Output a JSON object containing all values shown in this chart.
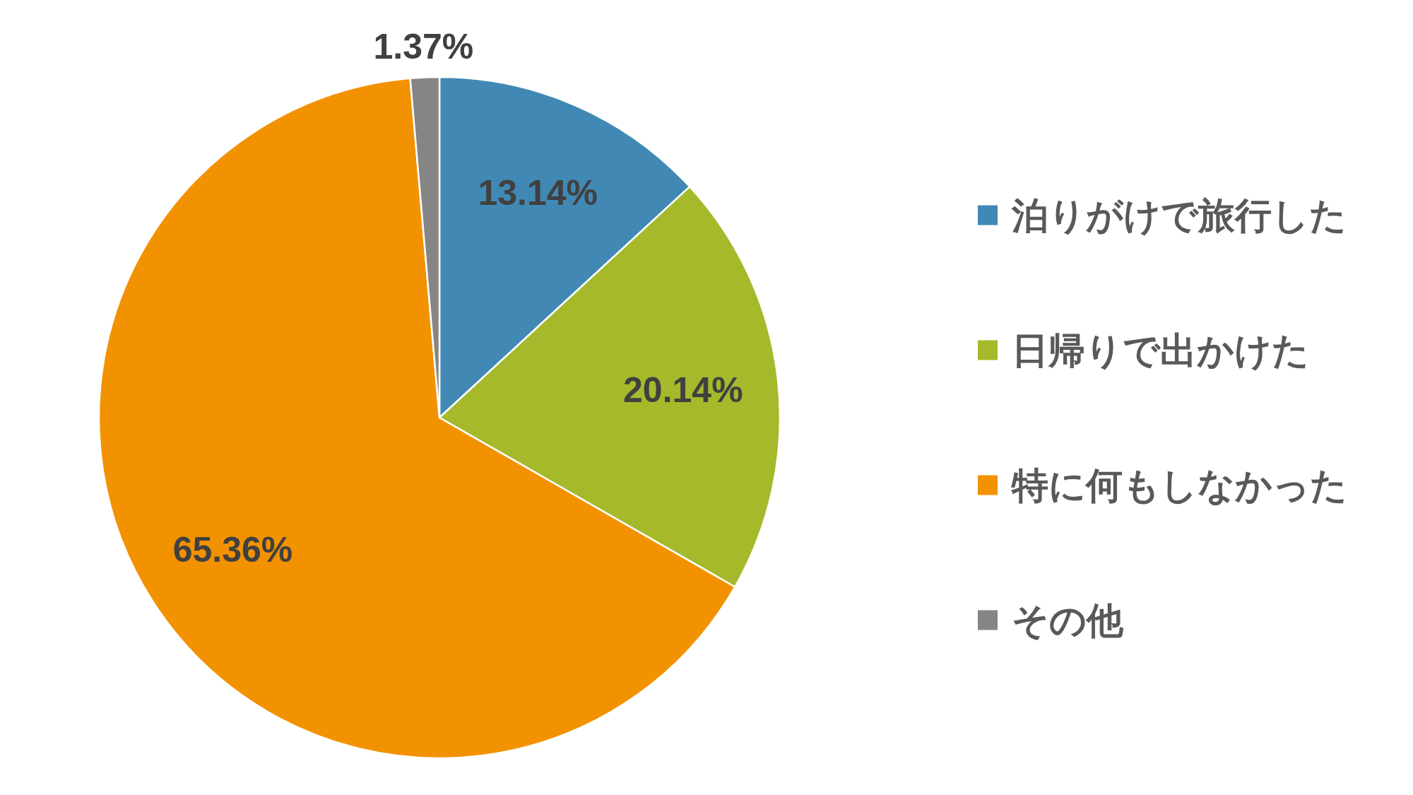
{
  "chart_data": {
    "type": "pie",
    "categories": [
      "泊りがけで旅行した",
      "日帰りで出かけた",
      "特に何もしなかった",
      "その他"
    ],
    "values": [
      13.14,
      20.14,
      65.36,
      1.37
    ],
    "colors": [
      "#4189b4",
      "#a5b92b",
      "#f39200",
      "#858585"
    ],
    "value_labels": [
      "13.14%",
      "20.14%",
      "65.36%",
      "1.37%"
    ],
    "legend": "right"
  }
}
